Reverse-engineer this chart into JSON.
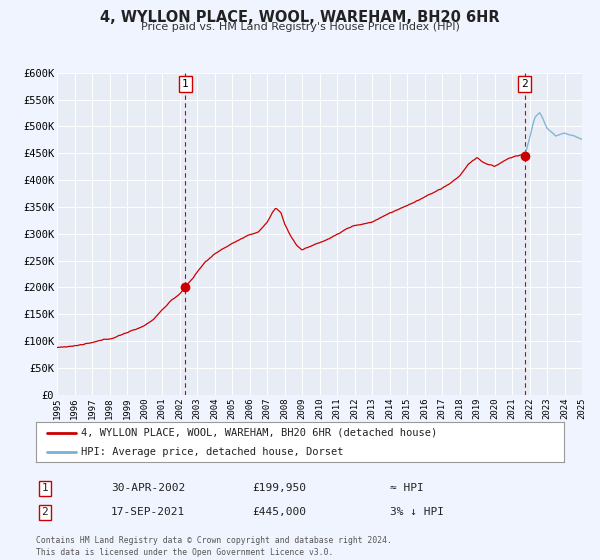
{
  "title": "4, WYLLON PLACE, WOOL, WAREHAM, BH20 6HR",
  "subtitle": "Price paid vs. HM Land Registry's House Price Index (HPI)",
  "bg_color": "#f0f4ff",
  "plot_bg_color": "#e8ecf5",
  "grid_color": "#ffffff",
  "hpi_color": "#7ab0d4",
  "price_color": "#cc0000",
  "marker_color": "#cc0000",
  "xmin": 1995,
  "xmax": 2025,
  "ymin": 0,
  "ymax": 600000,
  "yticks": [
    0,
    50000,
    100000,
    150000,
    200000,
    250000,
    300000,
    350000,
    400000,
    450000,
    500000,
    550000,
    600000
  ],
  "ytick_labels": [
    "£0",
    "£50K",
    "£100K",
    "£150K",
    "£200K",
    "£250K",
    "£300K",
    "£350K",
    "£400K",
    "£450K",
    "£500K",
    "£550K",
    "£600K"
  ],
  "xticks": [
    1995,
    1996,
    1997,
    1998,
    1999,
    2000,
    2001,
    2002,
    2003,
    2004,
    2005,
    2006,
    2007,
    2008,
    2009,
    2010,
    2011,
    2012,
    2013,
    2014,
    2015,
    2016,
    2017,
    2018,
    2019,
    2020,
    2021,
    2022,
    2023,
    2024,
    2025
  ],
  "sale1_x": 2002.33,
  "sale1_y": 199950,
  "sale1_label": "1",
  "sale2_x": 2021.72,
  "sale2_y": 445000,
  "sale2_label": "2",
  "vline1_x": 2002.33,
  "vline2_x": 2021.72,
  "legend_line1": "4, WYLLON PLACE, WOOL, WAREHAM, BH20 6HR (detached house)",
  "legend_line2": "HPI: Average price, detached house, Dorset",
  "note1_num": "1",
  "note1_date": "30-APR-2002",
  "note1_price": "£199,950",
  "note1_hpi": "≈ HPI",
  "note2_num": "2",
  "note2_date": "17-SEP-2021",
  "note2_price": "£445,000",
  "note2_hpi": "3% ↓ HPI",
  "footer": "Contains HM Land Registry data © Crown copyright and database right 2024.\nThis data is licensed under the Open Government Licence v3.0."
}
